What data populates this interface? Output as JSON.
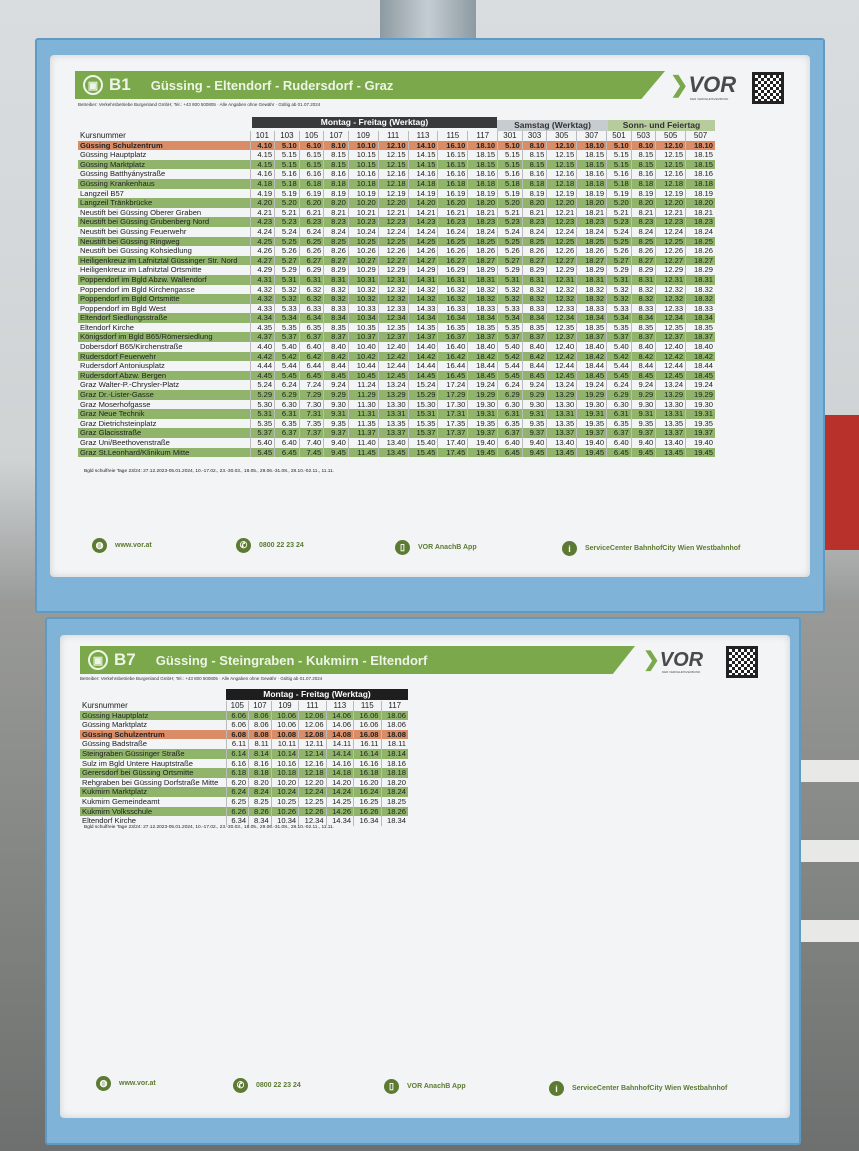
{
  "b1": {
    "line": "B1",
    "route": "Güssing - Eltendorf - Rudersdorf - Graz",
    "operator": "Betreiber: Verkehrsbetriebe Burgenland GmbH; Tel.: +43 800 500805 · Alle Angaben ohne Gewähr · Gültig ab 01.07.2024",
    "brand": "VOR",
    "brand_sub": "DER VERKEHRSVERBUND",
    "headers": {
      "weekday": "Montag - Freitag (Werktag)",
      "saturday": "Samstag (Werktag)",
      "sunday": "Sonn- und Feiertag"
    },
    "kurs_label": "Kursnummer",
    "kurs": [
      "101",
      "103",
      "105",
      "107",
      "109",
      "111",
      "113",
      "115",
      "117",
      "301",
      "303",
      "305",
      "307",
      "501",
      "503",
      "505",
      "507"
    ],
    "rows": [
      {
        "stop": "Güssing Schulzentrum",
        "style": "orange",
        "times": [
          "4.10",
          "5.10",
          "6.10",
          "8.10",
          "10.10",
          "12.10",
          "14.10",
          "16.10",
          "18.10",
          "5.10",
          "8.10",
          "12.10",
          "18.10",
          "5.10",
          "8.10",
          "12.10",
          "18.10"
        ]
      },
      {
        "stop": "Güssing Hauptplatz",
        "style": "white",
        "times": [
          "4.15",
          "5.15",
          "6.15",
          "8.15",
          "10.15",
          "12.15",
          "14.15",
          "16.15",
          "18.15",
          "5.15",
          "8.15",
          "12.15",
          "18.15",
          "5.15",
          "8.15",
          "12.15",
          "18.15"
        ]
      },
      {
        "stop": "Güssing Marktplatz",
        "style": "green",
        "times": [
          "4.15",
          "5.15",
          "6.15",
          "8.15",
          "10.15",
          "12.15",
          "14.15",
          "16.15",
          "18.15",
          "5.15",
          "8.15",
          "12.15",
          "18.15",
          "5.15",
          "8.15",
          "12.15",
          "18.15"
        ]
      },
      {
        "stop": "Güssing Batthyánystraße",
        "style": "white",
        "times": [
          "4.16",
          "5.16",
          "6.16",
          "8.16",
          "10.16",
          "12.16",
          "14.16",
          "16.16",
          "18.16",
          "5.16",
          "8.16",
          "12.16",
          "18.16",
          "5.16",
          "8.16",
          "12.16",
          "18.16"
        ]
      },
      {
        "stop": "Güssing Krankenhaus",
        "style": "green",
        "times": [
          "4.18",
          "5.18",
          "6.18",
          "8.18",
          "10.18",
          "12.18",
          "14.18",
          "16.18",
          "18.18",
          "5.18",
          "8.18",
          "12.18",
          "18.18",
          "5.18",
          "8.18",
          "12.18",
          "18.18"
        ]
      },
      {
        "stop": "Langzeil B57",
        "style": "white",
        "times": [
          "4.19",
          "5.19",
          "6.19",
          "8.19",
          "10.19",
          "12.19",
          "14.19",
          "16.19",
          "18.19",
          "5.19",
          "8.19",
          "12.19",
          "18.19",
          "5.19",
          "8.19",
          "12.19",
          "18.19"
        ]
      },
      {
        "stop": "Langzeil Tränkbrücke",
        "style": "green",
        "times": [
          "4.20",
          "5.20",
          "6.20",
          "8.20",
          "10.20",
          "12.20",
          "14.20",
          "16.20",
          "18.20",
          "5.20",
          "8.20",
          "12.20",
          "18.20",
          "5.20",
          "8.20",
          "12.20",
          "18.20"
        ]
      },
      {
        "stop": "Neustift bei Güssing Oberer Graben",
        "style": "white",
        "times": [
          "4.21",
          "5.21",
          "6.21",
          "8.21",
          "10.21",
          "12.21",
          "14.21",
          "16.21",
          "18.21",
          "5.21",
          "8.21",
          "12.21",
          "18.21",
          "5.21",
          "8.21",
          "12.21",
          "18.21"
        ]
      },
      {
        "stop": "Neustift bei Güssing Grubenberg Nord",
        "style": "green",
        "times": [
          "4.23",
          "5.23",
          "6.23",
          "8.23",
          "10.23",
          "12.23",
          "14.23",
          "16.23",
          "18.23",
          "5.23",
          "8.23",
          "12.23",
          "18.23",
          "5.23",
          "8.23",
          "12.23",
          "18.23"
        ]
      },
      {
        "stop": "Neustift bei Güssing Feuerwehr",
        "style": "white",
        "times": [
          "4.24",
          "5.24",
          "6.24",
          "8.24",
          "10.24",
          "12.24",
          "14.24",
          "16.24",
          "18.24",
          "5.24",
          "8.24",
          "12.24",
          "18.24",
          "5.24",
          "8.24",
          "12.24",
          "18.24"
        ]
      },
      {
        "stop": "Neustift bei Güssing Ringweg",
        "style": "green",
        "times": [
          "4.25",
          "5.25",
          "6.25",
          "8.25",
          "10.25",
          "12.25",
          "14.25",
          "16.25",
          "18.25",
          "5.25",
          "8.25",
          "12.25",
          "18.25",
          "5.25",
          "8.25",
          "12.25",
          "18.25"
        ]
      },
      {
        "stop": "Neustift bei Güssing Kohsiedlung",
        "style": "white",
        "times": [
          "4.26",
          "5.26",
          "6.26",
          "8.26",
          "10.26",
          "12.26",
          "14.26",
          "16.26",
          "18.26",
          "5.26",
          "8.26",
          "12.26",
          "18.26",
          "5.26",
          "8.26",
          "12.26",
          "18.26"
        ]
      },
      {
        "stop": "Heiligenkreuz im Lafnitztal Güssinger Str. Nord",
        "style": "green",
        "times": [
          "4.27",
          "5.27",
          "6.27",
          "8.27",
          "10.27",
          "12.27",
          "14.27",
          "16.27",
          "18.27",
          "5.27",
          "8.27",
          "12.27",
          "18.27",
          "5.27",
          "8.27",
          "12.27",
          "18.27"
        ]
      },
      {
        "stop": "Heiligenkreuz im Lafnitztal Ortsmitte",
        "style": "white",
        "times": [
          "4.29",
          "5.29",
          "6.29",
          "8.29",
          "10.29",
          "12.29",
          "14.29",
          "16.29",
          "18.29",
          "5.29",
          "8.29",
          "12.29",
          "18.29",
          "5.29",
          "8.29",
          "12.29",
          "18.29"
        ]
      },
      {
        "stop": "Poppendorf im Bgld Abzw. Wallendorf",
        "style": "green",
        "times": [
          "4.31",
          "5.31",
          "6.31",
          "8.31",
          "10.31",
          "12.31",
          "14.31",
          "16.31",
          "18.31",
          "5.31",
          "8.31",
          "12.31",
          "18.31",
          "5.31",
          "8.31",
          "12.31",
          "18.31"
        ]
      },
      {
        "stop": "Poppendorf im Bgld Kirchengasse",
        "style": "white",
        "times": [
          "4.32",
          "5.32",
          "6.32",
          "8.32",
          "10.32",
          "12.32",
          "14.32",
          "16.32",
          "18.32",
          "5.32",
          "8.32",
          "12.32",
          "18.32",
          "5.32",
          "8.32",
          "12.32",
          "18.32"
        ]
      },
      {
        "stop": "Poppendorf im Bgld Ortsmitte",
        "style": "green",
        "times": [
          "4.32",
          "5.32",
          "6.32",
          "8.32",
          "10.32",
          "12.32",
          "14.32",
          "16.32",
          "18.32",
          "5.32",
          "8.32",
          "12.32",
          "18.32",
          "5.32",
          "8.32",
          "12.32",
          "18.32"
        ]
      },
      {
        "stop": "Poppendorf im Bgld West",
        "style": "white",
        "times": [
          "4.33",
          "5.33",
          "6.33",
          "8.33",
          "10.33",
          "12.33",
          "14.33",
          "16.33",
          "18.33",
          "5.33",
          "8.33",
          "12.33",
          "18.33",
          "5.33",
          "8.33",
          "12.33",
          "18.33"
        ]
      },
      {
        "stop": "Eltendorf Siedlungsstraße",
        "style": "green",
        "times": [
          "4.34",
          "5.34",
          "6.34",
          "8.34",
          "10.34",
          "12.34",
          "14.34",
          "16.34",
          "18.34",
          "5.34",
          "8.34",
          "12.34",
          "18.34",
          "5.34",
          "8.34",
          "12.34",
          "18.34"
        ]
      },
      {
        "stop": "Eltendorf Kirche",
        "style": "white",
        "times": [
          "4.35",
          "5.35",
          "6.35",
          "8.35",
          "10.35",
          "12.35",
          "14.35",
          "16.35",
          "18.35",
          "5.35",
          "8.35",
          "12.35",
          "18.35",
          "5.35",
          "8.35",
          "12.35",
          "18.35"
        ]
      },
      {
        "stop": "Königsdorf im Bgld B65/Römersiedlung",
        "style": "green",
        "times": [
          "4.37",
          "5.37",
          "6.37",
          "8.37",
          "10.37",
          "12.37",
          "14.37",
          "16.37",
          "18.37",
          "5.37",
          "8.37",
          "12.37",
          "18.37",
          "5.37",
          "8.37",
          "12.37",
          "18.37"
        ]
      },
      {
        "stop": "Dobersdorf B65/Kirchenstraße",
        "style": "white",
        "times": [
          "4.40",
          "5.40",
          "6.40",
          "8.40",
          "10.40",
          "12.40",
          "14.40",
          "16.40",
          "18.40",
          "5.40",
          "8.40",
          "12.40",
          "18.40",
          "5.40",
          "8.40",
          "12.40",
          "18.40"
        ]
      },
      {
        "stop": "Rudersdorf Feuerwehr",
        "style": "green",
        "times": [
          "4.42",
          "5.42",
          "6.42",
          "8.42",
          "10.42",
          "12.42",
          "14.42",
          "16.42",
          "18.42",
          "5.42",
          "8.42",
          "12.42",
          "18.42",
          "5.42",
          "8.42",
          "12.42",
          "18.42"
        ]
      },
      {
        "stop": "Rudersdorf Antoniusplatz",
        "style": "white",
        "times": [
          "4.44",
          "5.44",
          "6.44",
          "8.44",
          "10.44",
          "12.44",
          "14.44",
          "16.44",
          "18.44",
          "5.44",
          "8.44",
          "12.44",
          "18.44",
          "5.44",
          "8.44",
          "12.44",
          "18.44"
        ]
      },
      {
        "stop": "Rudersdorf Abzw. Bergen",
        "style": "green",
        "times": [
          "4.45",
          "5.45",
          "6.45",
          "8.45",
          "10.45",
          "12.45",
          "14.45",
          "16.45",
          "18.45",
          "5.45",
          "8.45",
          "12.45",
          "18.45",
          "5.45",
          "8.45",
          "12.45",
          "18.45"
        ]
      },
      {
        "stop": "Graz Walter-P.-Chrysler-Platz",
        "style": "white",
        "times": [
          "5.24",
          "6.24",
          "7.24",
          "9.24",
          "11.24",
          "13.24",
          "15.24",
          "17.24",
          "19.24",
          "6.24",
          "9.24",
          "13.24",
          "19.24",
          "6.24",
          "9.24",
          "13.24",
          "19.24"
        ]
      },
      {
        "stop": "Graz Dr.-Lister-Gasse",
        "style": "green",
        "times": [
          "5.29",
          "6.29",
          "7.29",
          "9.29",
          "11.29",
          "13.29",
          "15.29",
          "17.29",
          "19.29",
          "6.29",
          "9.29",
          "13.29",
          "19.29",
          "6.29",
          "9.29",
          "13.29",
          "19.29"
        ]
      },
      {
        "stop": "Graz Moserhofgasse",
        "style": "white",
        "times": [
          "5.30",
          "6.30",
          "7.30",
          "9.30",
          "11.30",
          "13.30",
          "15.30",
          "17.30",
          "19.30",
          "6.30",
          "9.30",
          "13.30",
          "19.30",
          "6.30",
          "9.30",
          "13.30",
          "19.30"
        ]
      },
      {
        "stop": "Graz Neue Technik",
        "style": "green",
        "times": [
          "5.31",
          "6.31",
          "7.31",
          "9.31",
          "11.31",
          "13.31",
          "15.31",
          "17.31",
          "19.31",
          "6.31",
          "9.31",
          "13.31",
          "19.31",
          "6.31",
          "9.31",
          "13.31",
          "19.31"
        ]
      },
      {
        "stop": "Graz Dietrichsteinplatz",
        "style": "white",
        "times": [
          "5.35",
          "6.35",
          "7.35",
          "9.35",
          "11.35",
          "13.35",
          "15.35",
          "17.35",
          "19.35",
          "6.35",
          "9.35",
          "13.35",
          "19.35",
          "6.35",
          "9.35",
          "13.35",
          "19.35"
        ]
      },
      {
        "stop": "Graz Glacisstraße",
        "style": "green",
        "times": [
          "5.37",
          "6.37",
          "7.37",
          "9.37",
          "11.37",
          "13.37",
          "15.37",
          "17.37",
          "19.37",
          "6.37",
          "9.37",
          "13.37",
          "19.37",
          "6.37",
          "9.37",
          "13.37",
          "19.37"
        ]
      },
      {
        "stop": "Graz Uni/Beethovenstraße",
        "style": "white",
        "times": [
          "5.40",
          "6.40",
          "7.40",
          "9.40",
          "11.40",
          "13.40",
          "15.40",
          "17.40",
          "19.40",
          "6.40",
          "9.40",
          "13.40",
          "19.40",
          "6.40",
          "9.40",
          "13.40",
          "19.40"
        ]
      },
      {
        "stop": "Graz St.Leonhard/Klinikum Mitte",
        "style": "green",
        "times": [
          "5.45",
          "6.45",
          "7.45",
          "9.45",
          "11.45",
          "13.45",
          "15.45",
          "17.45",
          "19.45",
          "6.45",
          "9.45",
          "13.45",
          "19.45",
          "6.45",
          "9.45",
          "13.45",
          "19.45"
        ]
      }
    ],
    "note": "Bgld schulfreie Tage 23/24: 27.12.2023-05.01.2024, 10.-17.02., 23.-30.03., 18.05., 29.06.-31.08., 28.10.-02.11., 11.11."
  },
  "b7": {
    "line": "B7",
    "route": "Güssing - Steingraben - Kukmirn - Eltendorf",
    "operator": "Betreiber: Verkehrsbetriebe Burgenland GmbH; Tel.: +43 800 500805 · Alle Angaben ohne Gewähr · Gültig ab 01.07.2024",
    "brand": "VOR",
    "brand_sub": "DER VERKEHRSVERBUND",
    "headers": {
      "weekday": "Montag - Freitag (Werktag)"
    },
    "kurs_label": "Kursnummer",
    "kurs": [
      "105",
      "107",
      "109",
      "111",
      "113",
      "115",
      "117"
    ],
    "rows": [
      {
        "stop": "Güssing Hauptplatz",
        "style": "green",
        "times": [
          "6.06",
          "8.06",
          "10.06",
          "12.06",
          "14.06",
          "16.06",
          "18.06"
        ]
      },
      {
        "stop": "Güssing Marktplatz",
        "style": "white",
        "times": [
          "6.06",
          "8.06",
          "10.06",
          "12.06",
          "14.06",
          "16.06",
          "18.06"
        ]
      },
      {
        "stop": "Güssing Schulzentrum",
        "style": "orange",
        "times": [
          "6.08",
          "8.08",
          "10.08",
          "12.08",
          "14.08",
          "16.08",
          "18.08"
        ]
      },
      {
        "stop": "Güssing Badstraße",
        "style": "white",
        "times": [
          "6.11",
          "8.11",
          "10.11",
          "12.11",
          "14.11",
          "16.11",
          "18.11"
        ]
      },
      {
        "stop": "Steingraben Güssinger Straße",
        "style": "green",
        "times": [
          "6.14",
          "8.14",
          "10.14",
          "12.14",
          "14.14",
          "16.14",
          "18.14"
        ]
      },
      {
        "stop": "Sulz im Bgld Untere Hauptstraße",
        "style": "white",
        "times": [
          "6.16",
          "8.16",
          "10.16",
          "12.16",
          "14.16",
          "16.16",
          "18.16"
        ]
      },
      {
        "stop": "Gerersdorf bei Güssing Ortsmitte",
        "style": "green",
        "times": [
          "6.18",
          "8.18",
          "10.18",
          "12.18",
          "14.18",
          "16.18",
          "18.18"
        ]
      },
      {
        "stop": "Rehgraben bei Güssing Dorfstraße Mitte",
        "style": "white",
        "times": [
          "6.20",
          "8.20",
          "10.20",
          "12.20",
          "14.20",
          "16.20",
          "18.20"
        ]
      },
      {
        "stop": "Kukmirn Marktplatz",
        "style": "green",
        "times": [
          "6.24",
          "8.24",
          "10.24",
          "12.24",
          "14.24",
          "16.24",
          "18.24"
        ]
      },
      {
        "stop": "Kukmirn Gemeindeamt",
        "style": "white",
        "times": [
          "6.25",
          "8.25",
          "10.25",
          "12.25",
          "14.25",
          "16.25",
          "18.25"
        ]
      },
      {
        "stop": "Kukmirn Volksschule",
        "style": "green",
        "times": [
          "6.26",
          "8.26",
          "10.26",
          "12.26",
          "14.26",
          "16.26",
          "18.26"
        ]
      },
      {
        "stop": "Eltendorf Kirche",
        "style": "white",
        "times": [
          "6.34",
          "8.34",
          "10.34",
          "12.34",
          "14.34",
          "16.34",
          "18.34"
        ]
      }
    ],
    "note": "Bgld schulfreie Tage 23/24: 27.12.2023-05.01.2024, 10.-17.02., 23.-30.03., 18.05., 29.06.-31.08., 28.10.-02.11., 11.11."
  },
  "footer": {
    "web": "www.vor.at",
    "phone": "0800 22 23 24",
    "app": "VOR AnachB App",
    "service": "ServiceCenter BahnhofCity Wien Westbahnhof"
  },
  "icons": {
    "bus": "bus-icon",
    "globe": "globe-icon",
    "phone": "phone-icon",
    "mobile": "mobile-icon",
    "info": "info-icon"
  },
  "colors": {
    "green": "#7aa84a",
    "orange": "#d98c66",
    "frame": "#7fb4d8"
  }
}
